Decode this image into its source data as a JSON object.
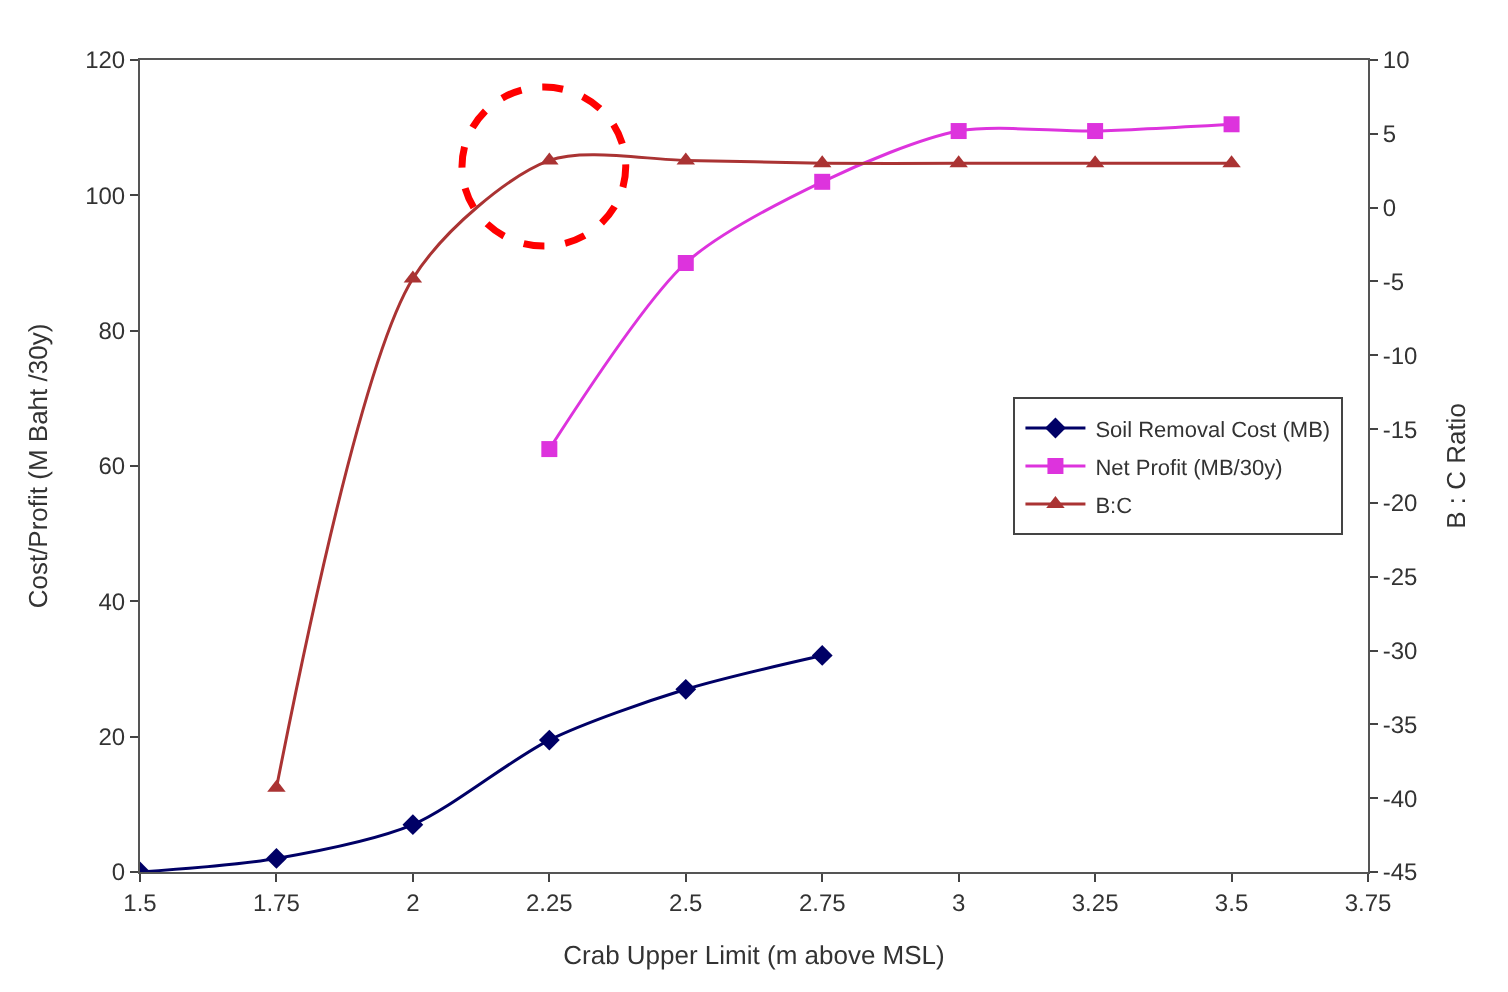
{
  "chart_data": {
    "type": "line",
    "xlabel": "Crab Upper Limit (m above MSL)",
    "ylabel": "Cost/Profit (M Baht /30y)",
    "y2label": "B : C Ratio",
    "x": [
      1.5,
      1.75,
      2,
      2.25,
      2.5,
      2.75,
      3,
      3.25,
      3.5
    ],
    "series": [
      {
        "name": "Soil Removal Cost (MB)",
        "color": "#000066",
        "marker": "diamond",
        "values": [
          0,
          2,
          7,
          19.5,
          27,
          32,
          null,
          null,
          null
        ]
      },
      {
        "name": "Net Profit (MB/30y)",
        "color": "#dd33dd",
        "marker": "square",
        "values": [
          null,
          null,
          null,
          62.5,
          90,
          102,
          109.5,
          109.5,
          110.5
        ]
      },
      {
        "name": "B:C",
        "color": "#aa3333",
        "marker": "triangle",
        "axis": "y2",
        "values": [
          null,
          -39.3,
          -4.8,
          3.2,
          3.2,
          3.0,
          3.0,
          3.0,
          3.0
        ]
      }
    ],
    "xlim": [
      1.5,
      3.75
    ],
    "xticks": [
      1.5,
      1.75,
      2,
      2.25,
      2.5,
      2.75,
      3,
      3.25,
      3.5,
      3.75
    ],
    "ylim": [
      0,
      120
    ],
    "yticks": [
      0,
      20,
      40,
      60,
      80,
      100,
      120
    ],
    "y2lim": [
      -45,
      10
    ],
    "y2ticks": [
      -45,
      -40,
      -35,
      -30,
      -25,
      -20,
      -15,
      -10,
      -5,
      0,
      5,
      10
    ],
    "legend": "right",
    "line_style": "solid"
  }
}
